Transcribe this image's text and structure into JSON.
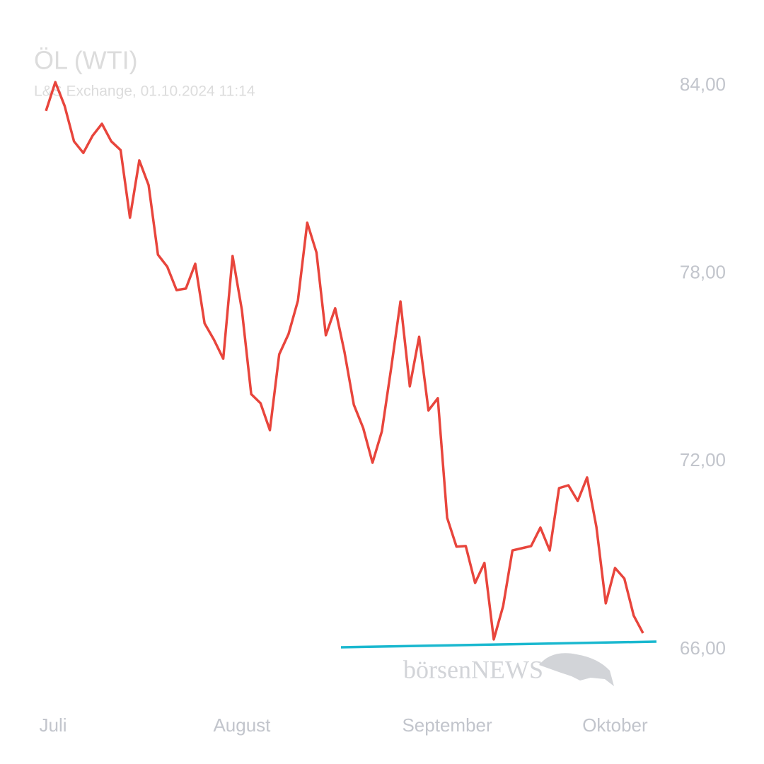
{
  "chart_data": {
    "type": "line",
    "title": "ÖL (WTI)",
    "subtitle": "L&S Exchange, 01.10.2024 11:14",
    "watermark": "börsenNEWS",
    "categories": [
      "Juli",
      null,
      null,
      null,
      null,
      null,
      null,
      null,
      null,
      null,
      null,
      null,
      null,
      null,
      null,
      null,
      null,
      null,
      null,
      null,
      null,
      "August",
      null,
      null,
      null,
      null,
      null,
      null,
      null,
      null,
      null,
      null,
      null,
      null,
      null,
      null,
      null,
      null,
      null,
      null,
      null,
      null,
      null,
      "September",
      null,
      null,
      null,
      null,
      null,
      null,
      null,
      null,
      null,
      null,
      null,
      null,
      null,
      null,
      null,
      null,
      null,
      "Oktober",
      null,
      null,
      null
    ],
    "series": [
      {
        "name": "ÖL (WTI)",
        "color": "#e8453c",
        "values": [
          83.19,
          84.11,
          83.35,
          82.22,
          81.85,
          82.4,
          82.78,
          82.22,
          81.94,
          79.78,
          81.61,
          80.82,
          78.6,
          78.22,
          77.47,
          77.52,
          78.31,
          76.41,
          75.89,
          75.28,
          78.56,
          76.84,
          74.15,
          73.86,
          73.0,
          75.42,
          76.07,
          77.13,
          79.62,
          78.67,
          76.03,
          76.89,
          75.49,
          73.81,
          73.07,
          71.96,
          72.96,
          74.97,
          77.11,
          74.4,
          75.98,
          73.63,
          74.02,
          70.2,
          69.28,
          69.3,
          68.12,
          68.76,
          66.32,
          67.38,
          69.16,
          69.23,
          69.3,
          69.89,
          69.16,
          71.15,
          71.24,
          70.74,
          71.49,
          69.91,
          67.47,
          68.6,
          68.26,
          67.08,
          66.52
        ]
      }
    ],
    "ylim": [
      65,
      85
    ],
    "yticks": [
      {
        "value": 66,
        "label": "66,00"
      },
      {
        "value": 72,
        "label": "72,00"
      },
      {
        "value": 78,
        "label": "78,00"
      },
      {
        "value": 84,
        "label": "84,00"
      }
    ],
    "grid": false
  }
}
